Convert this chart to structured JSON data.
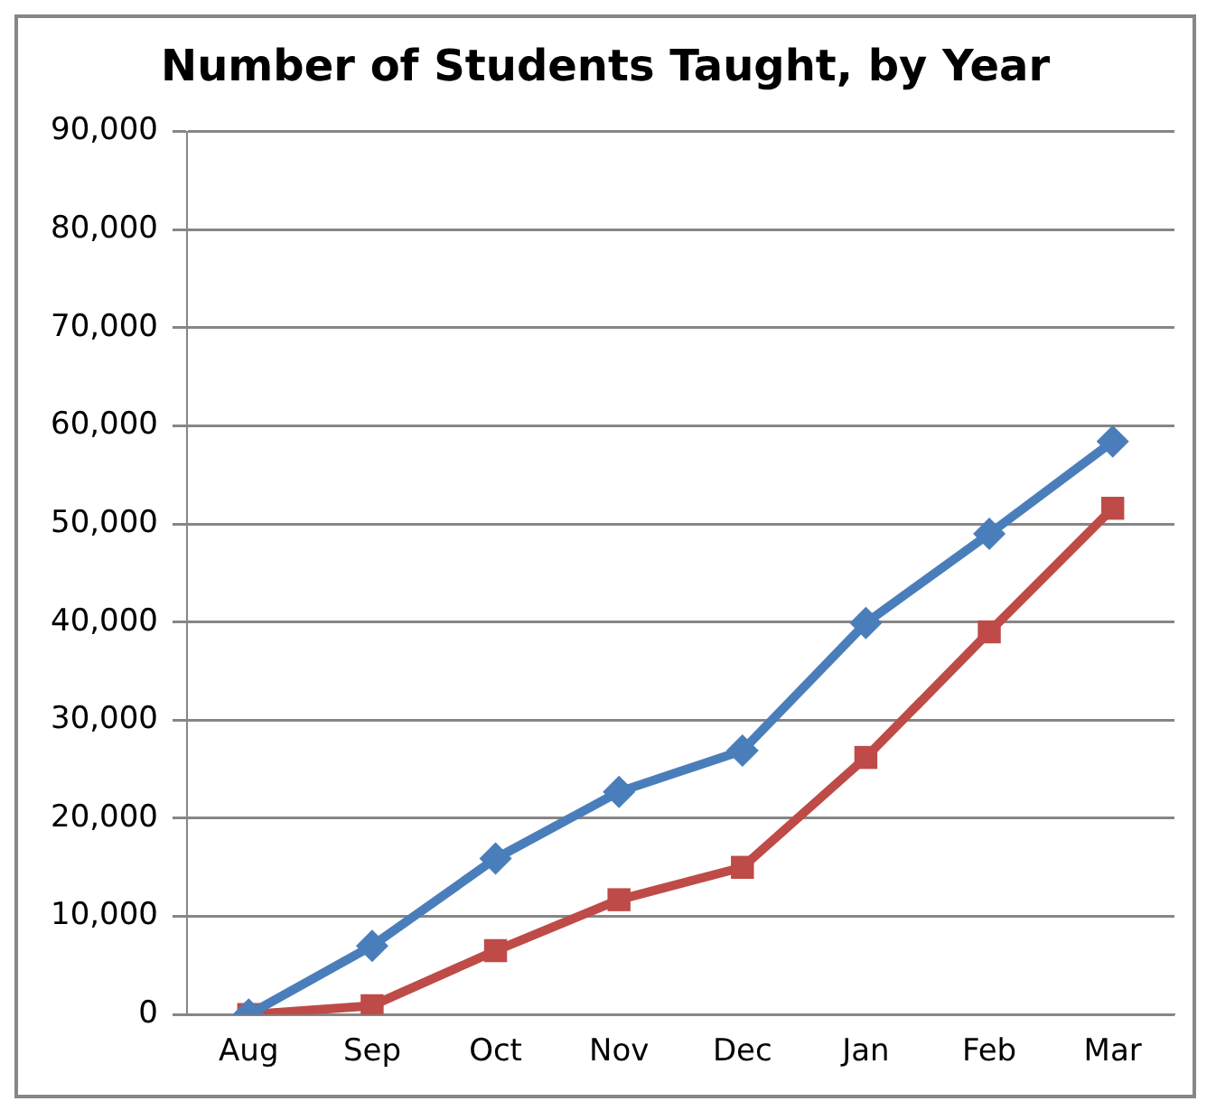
{
  "chart_data": {
    "type": "line",
    "title": "Number of Students Taught, by Year",
    "categories": [
      "Aug",
      "Sep",
      "Oct",
      "Nov",
      "Dec",
      "Jan",
      "Feb",
      "Mar"
    ],
    "series": [
      {
        "color": "#4a7ebb",
        "marker": "diamond",
        "values": [
          0,
          7000,
          15900,
          22700,
          26900,
          39900,
          49000,
          58400
        ]
      },
      {
        "color": "#be4b48",
        "marker": "square",
        "values": [
          0,
          900,
          6500,
          11700,
          15000,
          26200,
          39000,
          51600
        ]
      }
    ],
    "ylim": [
      0,
      90000
    ],
    "yticks": [
      {
        "value": 0,
        "label": "0"
      },
      {
        "value": 10000,
        "label": "10,000"
      },
      {
        "value": 20000,
        "label": "20,000"
      },
      {
        "value": 30000,
        "label": "30,000"
      },
      {
        "value": 40000,
        "label": "40,000"
      },
      {
        "value": 50000,
        "label": "50,000"
      },
      {
        "value": 60000,
        "label": "60,000"
      },
      {
        "value": 70000,
        "label": "70,000"
      },
      {
        "value": 80000,
        "label": "80,000"
      },
      {
        "value": 90000,
        "label": "90,000"
      }
    ],
    "grid": "y",
    "legend": false,
    "line_style": "solid"
  }
}
